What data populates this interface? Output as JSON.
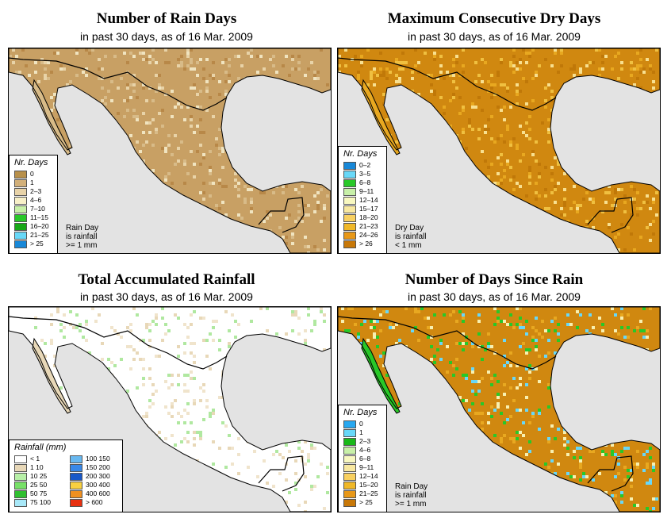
{
  "panels": [
    {
      "title": "Number of Rain Days",
      "subtitle": "in past 30 days, as of  16 Mar. 2009",
      "base_color": "#c8a064",
      "alt_colors": [
        "#d8bb88",
        "#e8d3a8",
        "#b88848",
        "#f0e4c0"
      ],
      "sea_color": "#e3e3e3",
      "legend": {
        "title": "Nr. Days",
        "items": [
          {
            "label": "0",
            "color": "#b8904a"
          },
          {
            "label": "1",
            "color": "#d2b07a"
          },
          {
            "label": "2–3",
            "color": "#e8d3a8"
          },
          {
            "label": "4–6",
            "color": "#f8f0c8"
          },
          {
            "label": "7–10",
            "color": "#c8f0a8"
          },
          {
            "label": "11–15",
            "color": "#28c828"
          },
          {
            "label": "16–20",
            "color": "#18a818"
          },
          {
            "label": "21–25",
            "color": "#68d8f8"
          },
          {
            "label": "> 25",
            "color": "#1888d8"
          }
        ]
      },
      "note": [
        "Rain Day",
        "is rainfall",
        ">= 1 mm"
      ]
    },
    {
      "title": "Maximum Consecutive Dry Days",
      "subtitle": "in past 30 days, as of  16 Mar. 2009",
      "base_color": "#d08810",
      "alt_colors": [
        "#e8a820",
        "#f0c040",
        "#c07808",
        "#f8e090"
      ],
      "sea_color": "#e3e3e3",
      "legend": {
        "title": "Nr. Days",
        "items": [
          {
            "label": "0–2",
            "color": "#1888d8"
          },
          {
            "label": "3–5",
            "color": "#68d8f8"
          },
          {
            "label": "6–8",
            "color": "#28c828"
          },
          {
            "label": "9–11",
            "color": "#c8f0a8"
          },
          {
            "label": "12–14",
            "color": "#f8f8c0"
          },
          {
            "label": "15–17",
            "color": "#f8e8a0"
          },
          {
            "label": "18–20",
            "color": "#f8d060"
          },
          {
            "label": "21–23",
            "color": "#f0b828"
          },
          {
            "label": "24–26",
            "color": "#e89818"
          },
          {
            "label": "> 26",
            "color": "#c87808"
          }
        ]
      },
      "note": [
        "Dry Day",
        "is rainfall",
        "< 1 mm"
      ]
    },
    {
      "title": "Total Accumulated Rainfall",
      "subtitle": "in past 30 days, as of  16 Mar. 2009",
      "base_color": "#ffffff",
      "alt_colors": [
        "#e8d8b8",
        "#f0e4cc",
        "#b0e8a0",
        "#ffffff"
      ],
      "sea_color": "#e3e3e3",
      "legend": {
        "title": "Rainfall (mm)",
        "items": [
          {
            "label": "< 1",
            "color": "#ffffff"
          },
          {
            "label": "1    10",
            "color": "#e8d8b8"
          },
          {
            "label": "10    25",
            "color": "#b8f0a8"
          },
          {
            "label": "25    50",
            "color": "#78e068"
          },
          {
            "label": "50    75",
            "color": "#30c030"
          },
          {
            "label": "75   100",
            "color": "#a8e8f8"
          },
          {
            "label": "100   150",
            "color": "#68b8f0"
          },
          {
            "label": "150   200",
            "color": "#3888e8"
          },
          {
            "label": "200   300",
            "color": "#1858c8"
          },
          {
            "label": "300   400",
            "color": "#f8d040"
          },
          {
            "label": "400   600",
            "color": "#f09020"
          },
          {
            "label": "> 600",
            "color": "#e83010"
          }
        ]
      },
      "note": []
    },
    {
      "title": "Number of Days Since Rain",
      "subtitle": "in past 30 days, as of  16 Mar. 2009",
      "base_color": "#d08810",
      "alt_colors": [
        "#28c828",
        "#f8f0b0",
        "#e8a820",
        "#68d8f8"
      ],
      "sea_color": "#e3e3e3",
      "legend": {
        "title": "Nr. Days",
        "items": [
          {
            "label": "0",
            "color": "#28a8f0"
          },
          {
            "label": "1",
            "color": "#68d8f8"
          },
          {
            "label": "2–3",
            "color": "#18b818"
          },
          {
            "label": "4–6",
            "color": "#c8f0a8"
          },
          {
            "label": "6–8",
            "color": "#f8f8c0"
          },
          {
            "label": "9–11",
            "color": "#f8e8a0"
          },
          {
            "label": "12–14",
            "color": "#f8d060"
          },
          {
            "label": "15–20",
            "color": "#f0b828"
          },
          {
            "label": "21–25",
            "color": "#e89818"
          },
          {
            "label": "> 25",
            "color": "#c87808"
          }
        ]
      },
      "note": [
        "Rain Day",
        "is rainfall",
        ">= 1 mm"
      ]
    }
  ]
}
